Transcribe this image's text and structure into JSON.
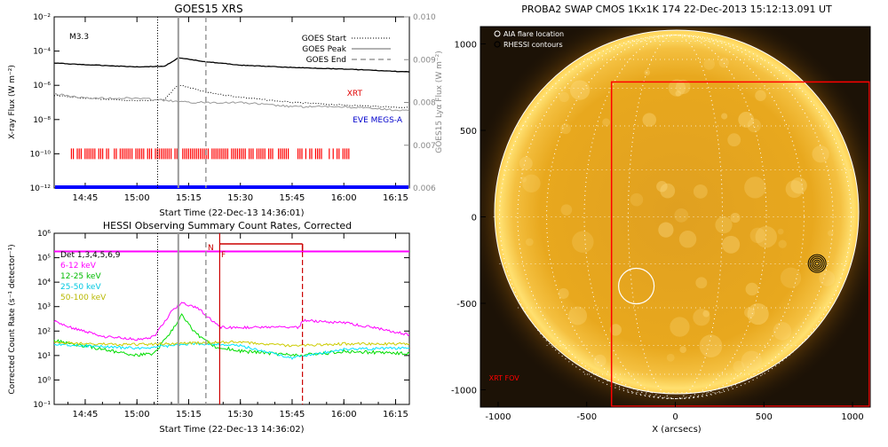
{
  "chart_data": [
    {
      "type": "line",
      "title": "GOES15 XRS",
      "xlabel": "Start Time (22-Dec-13 14:36:01)",
      "ylabel": "X-ray Flux (W m⁻²)",
      "ylabel_right": "GOES15 Lyα Flux (W m⁻²)",
      "y_scale": "log",
      "xlim": [
        "14:36",
        "16:19"
      ],
      "ylim": [
        1e-12,
        0.01
      ],
      "x_ticks": [
        "14:45",
        "15:00",
        "15:15",
        "15:30",
        "15:45",
        "16:00",
        "16:15"
      ],
      "y_ticks": [
        "10⁻¹²",
        "10⁻¹⁰",
        "10⁻⁸",
        "10⁻⁶",
        "10⁻⁴",
        "10⁻²"
      ],
      "y_ticks_right": [
        "0.006",
        "0.007",
        "0.008",
        "0.009",
        "0.010"
      ],
      "annotation": "M3.3",
      "legend": [
        "GOES Start",
        "GOES Peak",
        "GOES End"
      ],
      "side_labels": {
        "xrt": "XRT",
        "eve": "EVE MEGS-A"
      },
      "markers": {
        "start": "15:06",
        "peak": "15:12",
        "end": "15:20"
      },
      "series": [
        {
          "name": "",
          "color": "#000000",
          "x": [
            "14:36",
            "14:45",
            "15:00",
            "15:08",
            "15:12",
            "15:20",
            "15:30",
            "15:45",
            "16:00",
            "16:19"
          ],
          "y": [
            2e-05,
            1.6e-05,
            1.2e-05,
            1.3e-05,
            4e-05,
            2.4e-05,
            1.5e-05,
            1.1e-05,
            9e-06,
            6e-06
          ]
        },
        {
          "name": "",
          "color": "#000000",
          "dash": "dotted",
          "x": [
            "14:36",
            "14:45",
            "15:00",
            "15:08",
            "15:12",
            "15:20",
            "15:30",
            "15:45",
            "16:00",
            "16:19"
          ],
          "y": [
            2.5e-07,
            1.8e-07,
            1.2e-07,
            1.5e-07,
            1.1e-06,
            4e-07,
            2e-07,
            1e-07,
            7e-08,
            5e-08
          ]
        },
        {
          "name": "",
          "color": "#999999",
          "x": [
            "14:36",
            "14:45",
            "15:00",
            "15:15",
            "15:30",
            "15:45",
            "16:00",
            "16:19"
          ],
          "y": [
            0.0082,
            0.0081,
            0.0081,
            0.008,
            0.008,
            0.0079,
            0.0079,
            0.0078
          ]
        }
      ],
      "xrt_coverage": [
        "14:41",
        "16:02"
      ],
      "eve_coverage": [
        "14:36",
        "16:19"
      ]
    },
    {
      "type": "line",
      "title": "HESSI Observing Summary Count Rates, Corrected",
      "xlabel": "Start Time (22-Dec-13 14:36:02)",
      "ylabel": "Corrected Count Rate (s⁻¹ detector⁻¹)",
      "y_scale": "log",
      "xlim": [
        "14:36",
        "16:19"
      ],
      "ylim": [
        0.1,
        1000000.0
      ],
      "x_ticks": [
        "14:45",
        "15:00",
        "15:15",
        "15:30",
        "15:45",
        "16:00",
        "16:15"
      ],
      "y_ticks": [
        "10⁻¹",
        "10⁰",
        "10¹",
        "10²",
        "10³",
        "10⁴",
        "10⁵",
        "10⁶"
      ],
      "legend": [
        "Det 1,3,4,5,6,9",
        "6-12 keV",
        "12-25 keV",
        "25-50 keV",
        "50-100 keV"
      ],
      "flags": {
        "n": "N",
        "f": "F"
      },
      "markers": {
        "start": "15:06",
        "peak": "15:12",
        "end": "15:20",
        "night_start": "15:24",
        "night_end": "15:48"
      },
      "series": [
        {
          "name": "Det 1,3,4,5,6,9",
          "color": "#ff00ff",
          "x": [
            "14:36",
            "16:19"
          ],
          "y": [
            180000,
            180000
          ]
        },
        {
          "name": "6-12 keV",
          "color": "#ff00ff",
          "x": [
            "14:36",
            "14:40",
            "14:50",
            "15:00",
            "15:05",
            "15:10",
            "15:13",
            "15:18",
            "15:22",
            "15:24",
            "15:47",
            "15:48",
            "16:00",
            "16:10",
            "16:19"
          ],
          "y": [
            250,
            150,
            60,
            45,
            60,
            600,
            1500,
            800,
            250,
            140,
            140,
            280,
            220,
            130,
            70
          ]
        },
        {
          "name": "12-25 keV",
          "color": "#00dd00",
          "x": [
            "14:36",
            "14:45",
            "15:00",
            "15:05",
            "15:10",
            "15:13",
            "15:17",
            "15:22",
            "15:30",
            "15:40",
            "15:48",
            "16:00",
            "16:19"
          ],
          "y": [
            40,
            25,
            10,
            12,
            100,
            500,
            80,
            25,
            15,
            12,
            10,
            15,
            12
          ]
        },
        {
          "name": "25-50 keV",
          "color": "#00e5ff",
          "x": [
            "14:36",
            "14:45",
            "15:00",
            "15:10",
            "15:15",
            "15:22",
            "15:30",
            "15:45",
            "16:00",
            "16:19"
          ],
          "y": [
            30,
            25,
            20,
            25,
            30,
            30,
            25,
            8,
            18,
            20
          ]
        },
        {
          "name": "50-100 keV",
          "color": "#cccc00",
          "x": [
            "14:36",
            "14:45",
            "15:00",
            "15:10",
            "15:15",
            "15:22",
            "15:30",
            "15:45",
            "16:00",
            "16:19"
          ],
          "y": [
            35,
            30,
            28,
            30,
            32,
            35,
            35,
            25,
            30,
            30
          ]
        }
      ]
    },
    {
      "type": "heatmap",
      "title": "PROBA2 SWAP CMOS 1Kx1K 174 22-Dec-2013 15:12:13.091 UT",
      "xlabel": "X (arcsecs)",
      "ylabel": "",
      "xlim": [
        -1100,
        1100
      ],
      "ylim": [
        -1100,
        1100
      ],
      "x_ticks": [
        "-1000",
        "-500",
        "0",
        "500",
        "1000"
      ],
      "y_ticks": [
        "-1000",
        "-500",
        "0",
        "500",
        "1000"
      ],
      "legend": [
        "AIA flare location",
        "RHESSI contours"
      ],
      "grid": true,
      "fov_label": "XRT FOV",
      "xrt_fov": {
        "x": [
          -360,
          1100
        ],
        "y": [
          -1100,
          780
        ]
      },
      "aia_flare_location": {
        "x": -220,
        "y": -400
      },
      "rhessi_contours": {
        "x": 800,
        "y": -270
      }
    }
  ]
}
